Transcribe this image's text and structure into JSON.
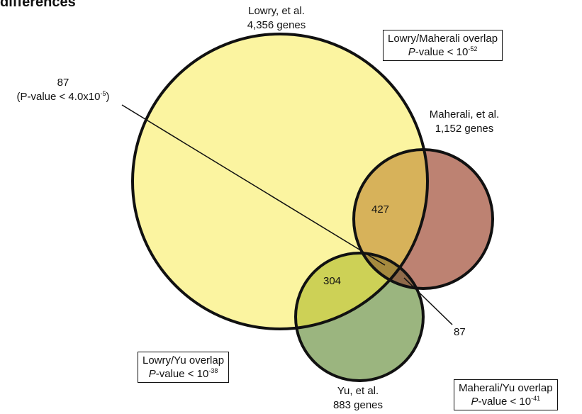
{
  "title": "differences",
  "sets": {
    "lowry": {
      "name": "Lowry, et al.",
      "count": "4,356 genes",
      "color": "#fbf4a0"
    },
    "maherali": {
      "name": "Maherali, et al.",
      "count": "1,152 genes",
      "color": "#bd8272"
    },
    "yu": {
      "name": "Yu, et al.",
      "count": "883 genes",
      "color": "#9bb57f"
    }
  },
  "overlaps": {
    "lowry_maherali": "427",
    "lowry_yu": "304",
    "maherali_yu": "87",
    "triple": "87",
    "triple_pvalue_prefix": "(P-value < 4.0x10",
    "triple_pvalue_exp": "-5",
    "triple_pvalue_suffix": ")"
  },
  "pvalue_boxes": {
    "lowry_maherali": {
      "title": "Lowry/Maherali overlap",
      "p_label": "P",
      "text": "-value < 10",
      "exp": "-52"
    },
    "lowry_yu": {
      "title": "Lowry/Yu overlap",
      "p_label": "P",
      "text": "-value < 10",
      "exp": "-38"
    },
    "maherali_yu": {
      "title": "Maherali/Yu overlap",
      "p_label": "P",
      "text": "-value < 10",
      "exp": "-41"
    }
  },
  "colors": {
    "lowry_maherali_overlap": "#d7b25a",
    "lowry_yu_overlap": "#cdd156",
    "maherali_yu_overlap": "#8f6a4a"
  }
}
